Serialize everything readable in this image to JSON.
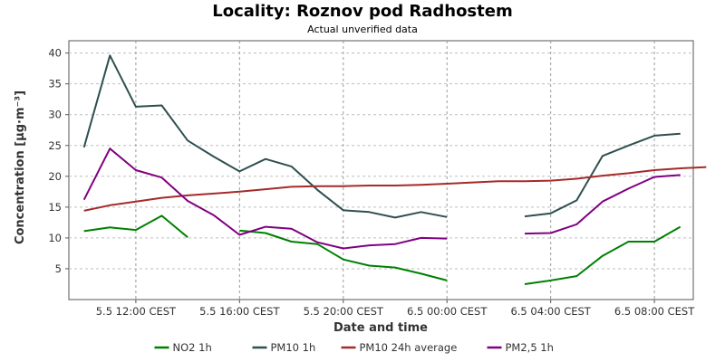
{
  "chart_data": {
    "type": "line",
    "title": "Locality: Roznov pod Radhostem",
    "subtitle": "Actual unverified data",
    "xlabel": "Date and time",
    "ylabel": "Concentration [µg·m⁻³]",
    "ylim": [
      0,
      42
    ],
    "yticks": [
      5,
      10,
      15,
      20,
      25,
      30,
      35,
      40
    ],
    "xlim": [
      "2023-05-05T09:25",
      "2023-05-06T09:30"
    ],
    "xticks": [
      {
        "t": "2023-05-05T12:00",
        "label": "5.5 12:00 CEST"
      },
      {
        "t": "2023-05-05T16:00",
        "label": "5.5 16:00 CEST"
      },
      {
        "t": "2023-05-05T20:00",
        "label": "5.5 20:00 CEST"
      },
      {
        "t": "2023-05-06T00:00",
        "label": "6.5 00:00 CEST"
      },
      {
        "t": "2023-05-06T04:00",
        "label": "6.5 04:00 CEST"
      },
      {
        "t": "2023-05-06T08:00",
        "label": "6.5 08:00 CEST"
      }
    ],
    "grid": true,
    "legend_position": "bottom",
    "series": [
      {
        "name": "NO2 1h",
        "color": "#008000",
        "points": [
          [
            "2023-05-05T10:00",
            11.1
          ],
          [
            "2023-05-05T11:00",
            11.7
          ],
          [
            "2023-05-05T12:00",
            11.3
          ],
          [
            "2023-05-05T13:00",
            13.6
          ],
          [
            "2023-05-05T14:00",
            10.1
          ],
          null,
          [
            "2023-05-05T16:00",
            11.2
          ],
          [
            "2023-05-05T17:00",
            10.8
          ],
          [
            "2023-05-05T18:00",
            9.4
          ],
          [
            "2023-05-05T19:00",
            9.0
          ],
          [
            "2023-05-05T20:00",
            6.5
          ],
          [
            "2023-05-05T21:00",
            5.5
          ],
          [
            "2023-05-05T22:00",
            5.2
          ],
          [
            "2023-05-05T23:00",
            4.2
          ],
          [
            "2023-05-06T00:00",
            3.1
          ],
          null,
          [
            "2023-05-06T03:00",
            2.5
          ],
          [
            "2023-05-06T04:00",
            3.1
          ],
          [
            "2023-05-06T05:00",
            3.8
          ],
          [
            "2023-05-06T06:00",
            7.1
          ],
          [
            "2023-05-06T07:00",
            9.4
          ],
          [
            "2023-05-06T08:00",
            9.4
          ],
          [
            "2023-05-06T09:00",
            11.8
          ]
        ]
      },
      {
        "name": "PM10 1h",
        "color": "#2f4f4f",
        "points": [
          [
            "2023-05-05T10:00",
            24.7
          ],
          [
            "2023-05-05T11:00",
            39.6
          ],
          [
            "2023-05-05T12:00",
            31.3
          ],
          [
            "2023-05-05T13:00",
            31.5
          ],
          [
            "2023-05-05T14:00",
            25.8
          ],
          [
            "2023-05-05T15:00",
            23.2
          ],
          [
            "2023-05-05T16:00",
            20.8
          ],
          [
            "2023-05-05T17:00",
            22.8
          ],
          [
            "2023-05-05T18:00",
            21.6
          ],
          [
            "2023-05-05T19:00",
            17.8
          ],
          [
            "2023-05-05T20:00",
            14.5
          ],
          [
            "2023-05-05T21:00",
            14.2
          ],
          [
            "2023-05-05T22:00",
            13.3
          ],
          [
            "2023-05-05T23:00",
            14.2
          ],
          [
            "2023-05-06T00:00",
            13.4
          ],
          null,
          [
            "2023-05-06T03:00",
            13.5
          ],
          [
            "2023-05-06T04:00",
            14.0
          ],
          [
            "2023-05-06T05:00",
            16.1
          ],
          [
            "2023-05-06T06:00",
            23.3
          ],
          [
            "2023-05-06T07:00",
            25.0
          ],
          [
            "2023-05-06T08:00",
            26.6
          ],
          [
            "2023-05-06T09:00",
            26.9
          ]
        ]
      },
      {
        "name": "PM10 24h average",
        "color": "#a52a2a",
        "points": [
          [
            "2023-05-05T10:00",
            14.4
          ],
          [
            "2023-05-05T11:00",
            15.3
          ],
          [
            "2023-05-05T12:00",
            15.9
          ],
          [
            "2023-05-05T13:00",
            16.5
          ],
          [
            "2023-05-05T14:00",
            16.9
          ],
          [
            "2023-05-05T15:00",
            17.2
          ],
          [
            "2023-05-05T16:00",
            17.5
          ],
          [
            "2023-05-05T17:00",
            17.9
          ],
          [
            "2023-05-05T18:00",
            18.3
          ],
          [
            "2023-05-05T19:00",
            18.4
          ],
          [
            "2023-05-05T20:00",
            18.4
          ],
          [
            "2023-05-05T21:00",
            18.5
          ],
          [
            "2023-05-05T22:00",
            18.5
          ],
          [
            "2023-05-05T23:00",
            18.6
          ],
          [
            "2023-05-06T00:00",
            18.8
          ],
          [
            "2023-05-06T01:00",
            19.0
          ],
          [
            "2023-05-06T02:00",
            19.2
          ],
          [
            "2023-05-06T03:00",
            19.2
          ],
          [
            "2023-05-06T04:00",
            19.3
          ],
          [
            "2023-05-06T05:00",
            19.6
          ],
          [
            "2023-05-06T06:00",
            20.1
          ],
          [
            "2023-05-06T07:00",
            20.5
          ],
          [
            "2023-05-06T08:00",
            21.0
          ],
          [
            "2023-05-06T09:00",
            21.3
          ],
          [
            "2023-05-06T10:00",
            21.5
          ]
        ]
      },
      {
        "name": "PM2,5 1h",
        "color": "#800080",
        "points": [
          [
            "2023-05-05T10:00",
            16.2
          ],
          [
            "2023-05-05T11:00",
            24.5
          ],
          [
            "2023-05-05T12:00",
            21.0
          ],
          [
            "2023-05-05T13:00",
            19.8
          ],
          [
            "2023-05-05T14:00",
            16.0
          ],
          [
            "2023-05-05T15:00",
            13.7
          ],
          [
            "2023-05-05T16:00",
            10.5
          ],
          [
            "2023-05-05T17:00",
            11.8
          ],
          [
            "2023-05-05T18:00",
            11.5
          ],
          [
            "2023-05-05T19:00",
            9.3
          ],
          [
            "2023-05-05T20:00",
            8.3
          ],
          [
            "2023-05-05T21:00",
            8.8
          ],
          [
            "2023-05-05T22:00",
            9.0
          ],
          [
            "2023-05-05T23:00",
            10.0
          ],
          [
            "2023-05-06T00:00",
            9.9
          ],
          null,
          [
            "2023-05-06T03:00",
            10.7
          ],
          [
            "2023-05-06T04:00",
            10.8
          ],
          [
            "2023-05-06T05:00",
            12.2
          ],
          [
            "2023-05-06T06:00",
            15.9
          ],
          [
            "2023-05-06T07:00",
            18.0
          ],
          [
            "2023-05-06T08:00",
            19.9
          ],
          [
            "2023-05-06T09:00",
            20.2
          ]
        ]
      }
    ]
  }
}
